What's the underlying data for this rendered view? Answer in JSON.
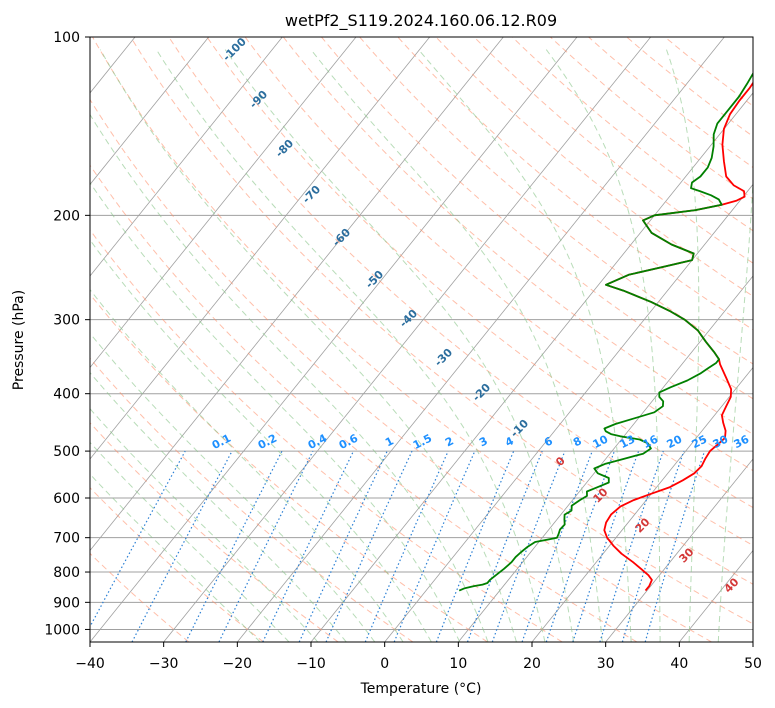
{
  "chart_data": {
    "type": "line",
    "title": "wetPf2_S119.2024.160.06.12.R09",
    "xlabel": "Temperature (°C)",
    "ylabel": "Pressure (hPa)",
    "xlim": [
      -40,
      50
    ],
    "ylim": [
      1050,
      100
    ],
    "y_scale": "log",
    "grid": true,
    "x_ticks": [
      "−40",
      "−30",
      "−20",
      "−10",
      "0",
      "10",
      "20",
      "30",
      "40",
      "50"
    ],
    "y_ticks": [
      "100",
      "200",
      "300",
      "400",
      "500",
      "600",
      "700",
      "800",
      "900",
      "1000"
    ],
    "dry_adiabat_labels": [
      "-100",
      "-90",
      "-80",
      "-70",
      "-60",
      "-50",
      "-40",
      "-30",
      "-20",
      "-10"
    ],
    "mixing_ratio_labels": [
      "0.1",
      "0.2",
      "0.4",
      "0.6",
      "1",
      "1.5",
      "2",
      "3",
      "4",
      "6",
      "8",
      "10",
      "13",
      "16",
      "20",
      "25",
      "30",
      "36"
    ],
    "moist_adiabat_labels": [
      "0",
      "10",
      "20",
      "30",
      "40"
    ],
    "colors": {
      "temperature": "#ff0000",
      "dewpoint": "#008000",
      "isotherm": "#a0a0a0",
      "dry_adiabat": "#ff8a65",
      "moist_adiabat": "#88c488",
      "mixing_ratio": "#2a7fd4",
      "dry_label": "#2c6e9e",
      "mix_label": "#1e90ff",
      "moist_label": "#d43838"
    },
    "series": [
      {
        "name": "Temperature",
        "points": [
          [
            29.8,
            860
          ],
          [
            29.8,
            845
          ],
          [
            29.5,
            825
          ],
          [
            28.5,
            810
          ],
          [
            26.8,
            790
          ],
          [
            25.0,
            770
          ],
          [
            22.5,
            745
          ],
          [
            20.5,
            722
          ],
          [
            18.8,
            700
          ],
          [
            17.6,
            680
          ],
          [
            17.0,
            660
          ],
          [
            16.8,
            640
          ],
          [
            17.2,
            620
          ],
          [
            18.3,
            605
          ],
          [
            20.0,
            590
          ],
          [
            21.8,
            575
          ],
          [
            22.8,
            560
          ],
          [
            23.6,
            545
          ],
          [
            23.8,
            530
          ],
          [
            23.5,
            515
          ],
          [
            23.3,
            500
          ],
          [
            23.6,
            488
          ],
          [
            23.9,
            475
          ],
          [
            23.2,
            462
          ],
          [
            22.0,
            448
          ],
          [
            21.0,
            435
          ],
          [
            20.6,
            420
          ],
          [
            20.2,
            405
          ],
          [
            19.4,
            393
          ],
          [
            17.6,
            377
          ],
          [
            15.2,
            357
          ],
          [
            14.5,
            350
          ],
          [
            13.0,
            340
          ],
          [
            10.8,
            327
          ],
          [
            8.5,
            313
          ],
          [
            5.5,
            300
          ],
          [
            2.5,
            290
          ],
          [
            -1.0,
            280
          ],
          [
            -6.0,
            268
          ],
          [
            -9.0,
            262
          ],
          [
            -7.0,
            252
          ],
          [
            -3.0,
            244
          ],
          [
            0.0,
            238
          ],
          [
            -0.5,
            232
          ],
          [
            -4.5,
            224
          ],
          [
            -8.5,
            214
          ],
          [
            -11.0,
            204
          ],
          [
            -10.0,
            200
          ],
          [
            -5.0,
            196
          ],
          [
            -2.0,
            192
          ],
          [
            -0.5,
            189
          ],
          [
            0.2,
            186
          ],
          [
            -0.5,
            182
          ],
          [
            -2.5,
            178
          ],
          [
            -4.5,
            172
          ],
          [
            -6.5,
            162
          ],
          [
            -8.5,
            152
          ],
          [
            -10.0,
            143
          ],
          [
            -10.8,
            135
          ],
          [
            -11.0,
            128
          ],
          [
            -11.0,
            122
          ],
          [
            -11.2,
            117
          ],
          [
            -12.0,
            111
          ],
          [
            -13.5,
            105
          ],
          [
            -14.5,
            100
          ]
        ]
      },
      {
        "name": "Dewpoint",
        "points": [
          [
            4.5,
            860
          ],
          [
            5.0,
            852
          ],
          [
            6.0,
            845
          ],
          [
            7.0,
            840
          ],
          [
            7.5,
            835
          ],
          [
            7.5,
            825
          ],
          [
            7.8,
            810
          ],
          [
            8.2,
            790
          ],
          [
            8.5,
            770
          ],
          [
            8.5,
            755
          ],
          [
            8.7,
            740
          ],
          [
            9.0,
            725
          ],
          [
            9.5,
            712
          ],
          [
            11.0,
            705
          ],
          [
            12.0,
            700
          ],
          [
            11.8,
            690
          ],
          [
            11.5,
            678
          ],
          [
            11.6,
            665
          ],
          [
            11.0,
            652
          ],
          [
            10.5,
            640
          ],
          [
            11.0,
            630
          ],
          [
            10.5,
            618
          ],
          [
            11.0,
            605
          ],
          [
            11.5,
            595
          ],
          [
            11.0,
            585
          ],
          [
            12.0,
            575
          ],
          [
            13.0,
            565
          ],
          [
            12.5,
            555
          ],
          [
            10.5,
            545
          ],
          [
            9.5,
            535
          ],
          [
            10.5,
            525
          ],
          [
            12.5,
            515
          ],
          [
            14.5,
            505
          ],
          [
            15.0,
            495
          ],
          [
            14.0,
            485
          ],
          [
            12.5,
            478
          ],
          [
            11.0,
            475
          ],
          [
            9.5,
            472
          ],
          [
            8.0,
            468
          ],
          [
            7.0,
            463
          ],
          [
            6.5,
            458
          ],
          [
            7.5,
            450
          ],
          [
            9.5,
            440
          ],
          [
            11.5,
            430
          ],
          [
            12.0,
            420
          ],
          [
            11.5,
            412
          ],
          [
            10.5,
            405
          ],
          [
            10.0,
            398
          ],
          [
            11.0,
            390
          ],
          [
            12.5,
            380
          ],
          [
            13.5,
            370
          ],
          [
            14.0,
            362
          ],
          [
            14.5,
            355
          ],
          [
            14.5,
            350
          ],
          [
            13.0,
            340
          ],
          [
            10.8,
            327
          ],
          [
            8.5,
            313
          ],
          [
            5.5,
            300
          ],
          [
            2.5,
            290
          ],
          [
            -1.0,
            280
          ],
          [
            -6.0,
            268
          ],
          [
            -9.0,
            262
          ],
          [
            -7.0,
            252
          ],
          [
            -3.0,
            244
          ],
          [
            0.0,
            238
          ],
          [
            -0.5,
            232
          ],
          [
            -4.5,
            224
          ],
          [
            -8.5,
            214
          ],
          [
            -11.0,
            204
          ],
          [
            -10.0,
            200
          ],
          [
            -5.0,
            196
          ],
          [
            -2.0,
            192
          ],
          [
            -3.0,
            188
          ],
          [
            -4.5,
            185
          ],
          [
            -6.5,
            182
          ],
          [
            -8.0,
            180
          ],
          [
            -8.5,
            176
          ],
          [
            -8.0,
            172
          ],
          [
            -8.0,
            166
          ],
          [
            -8.5,
            160
          ],
          [
            -9.5,
            153
          ],
          [
            -10.8,
            146
          ],
          [
            -11.5,
            140
          ],
          [
            -11.5,
            133
          ],
          [
            -11.5,
            126
          ],
          [
            -11.8,
            120
          ],
          [
            -12.2,
            114
          ],
          [
            -12.5,
            109
          ],
          [
            -13.5,
            104
          ],
          [
            -14.5,
            100
          ]
        ]
      }
    ]
  }
}
